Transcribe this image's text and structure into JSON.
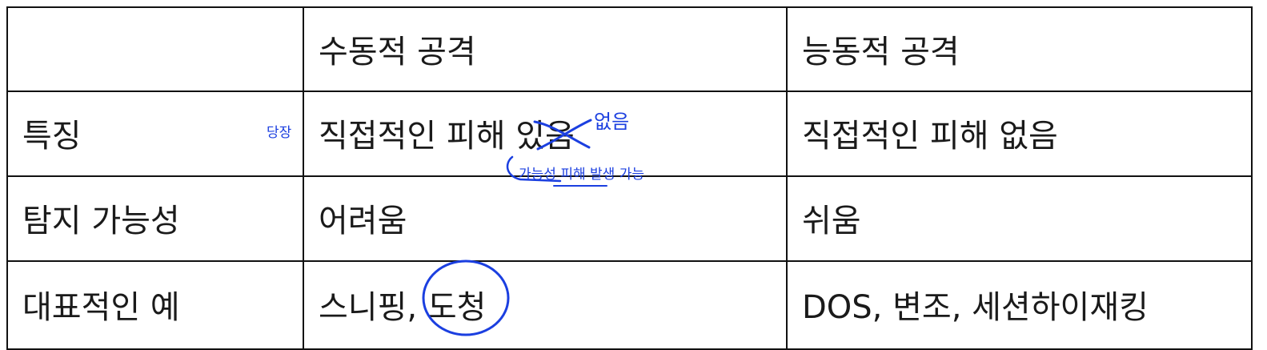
{
  "table": {
    "header": [
      "",
      "수동적 공격",
      "능동적 공격"
    ],
    "rows": [
      {
        "label": "특징",
        "passive": "직접적인 피해 있음",
        "active": "직접적인 피해 없음"
      },
      {
        "label": "탐지 가능성",
        "passive": "어려움",
        "active": "쉬움"
      },
      {
        "label": "대표적인 예",
        "passive": "스니핑, 도청",
        "active": "DOS, 변조, 세션하이재킹"
      }
    ]
  },
  "annotations": {
    "ink_color": "#1b3fe0",
    "left_note": "당장",
    "correction": "없음",
    "below_note": "가능성 피해 발생 가능",
    "strikethrough_target": "있",
    "circled_word": "도청"
  }
}
